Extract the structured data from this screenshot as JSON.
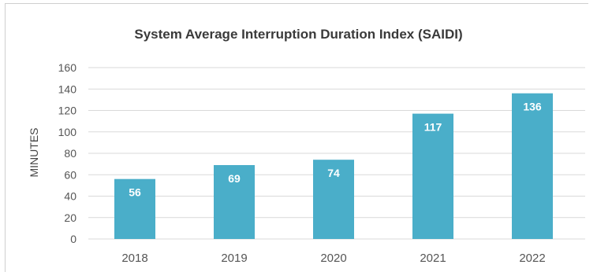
{
  "chart_data": {
    "type": "bar",
    "title": "System Average Interruption Duration Index (SAIDI)",
    "xlabel": "",
    "ylabel": "MINUTES",
    "categories": [
      "2018",
      "2019",
      "2020",
      "2021",
      "2022"
    ],
    "values": [
      56,
      69,
      74,
      117,
      136
    ],
    "data_labels": [
      "56",
      "69",
      "74",
      "117",
      "136"
    ],
    "ylim": [
      0,
      160
    ],
    "yticks": [
      "0",
      "20",
      "40",
      "60",
      "80",
      "100",
      "120",
      "140",
      "160"
    ],
    "grid": "horizontal",
    "bar_color": "#4aaec9",
    "grid_color": "#d9d9d9"
  }
}
